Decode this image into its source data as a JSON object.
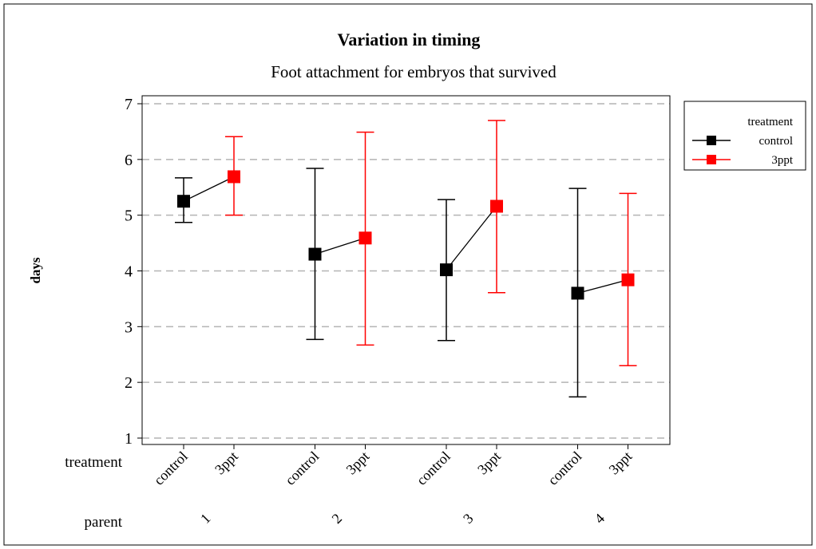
{
  "chart_data": {
    "type": "interval",
    "title": "Variation in timing",
    "subtitle": "Foot attachment for embryos that survived",
    "ylabel": "days",
    "ylim": [
      1,
      7
    ],
    "yticks": [
      1,
      2,
      3,
      4,
      5,
      6,
      7
    ],
    "grid": true,
    "legend_position": "top-right",
    "legend_title": "treatment",
    "x_factor_labels": [
      "treatment",
      "parent"
    ],
    "parents": [
      "1",
      "2",
      "3",
      "4"
    ],
    "treatments": [
      "control",
      "3ppt"
    ],
    "series": [
      {
        "name": "control",
        "color": "#000000",
        "marker": "square",
        "mean": [
          5.25,
          4.3,
          4.02,
          3.6
        ],
        "lower": [
          4.87,
          2.77,
          2.75,
          1.74
        ],
        "upper": [
          5.67,
          5.84,
          5.28,
          5.48
        ]
      },
      {
        "name": "3ppt",
        "color": "#ff0000",
        "marker": "square",
        "mean": [
          5.69,
          4.59,
          5.16,
          3.84
        ],
        "lower": [
          5.0,
          2.67,
          3.61,
          2.3
        ],
        "upper": [
          6.41,
          6.49,
          6.7,
          5.39
        ]
      }
    ]
  }
}
